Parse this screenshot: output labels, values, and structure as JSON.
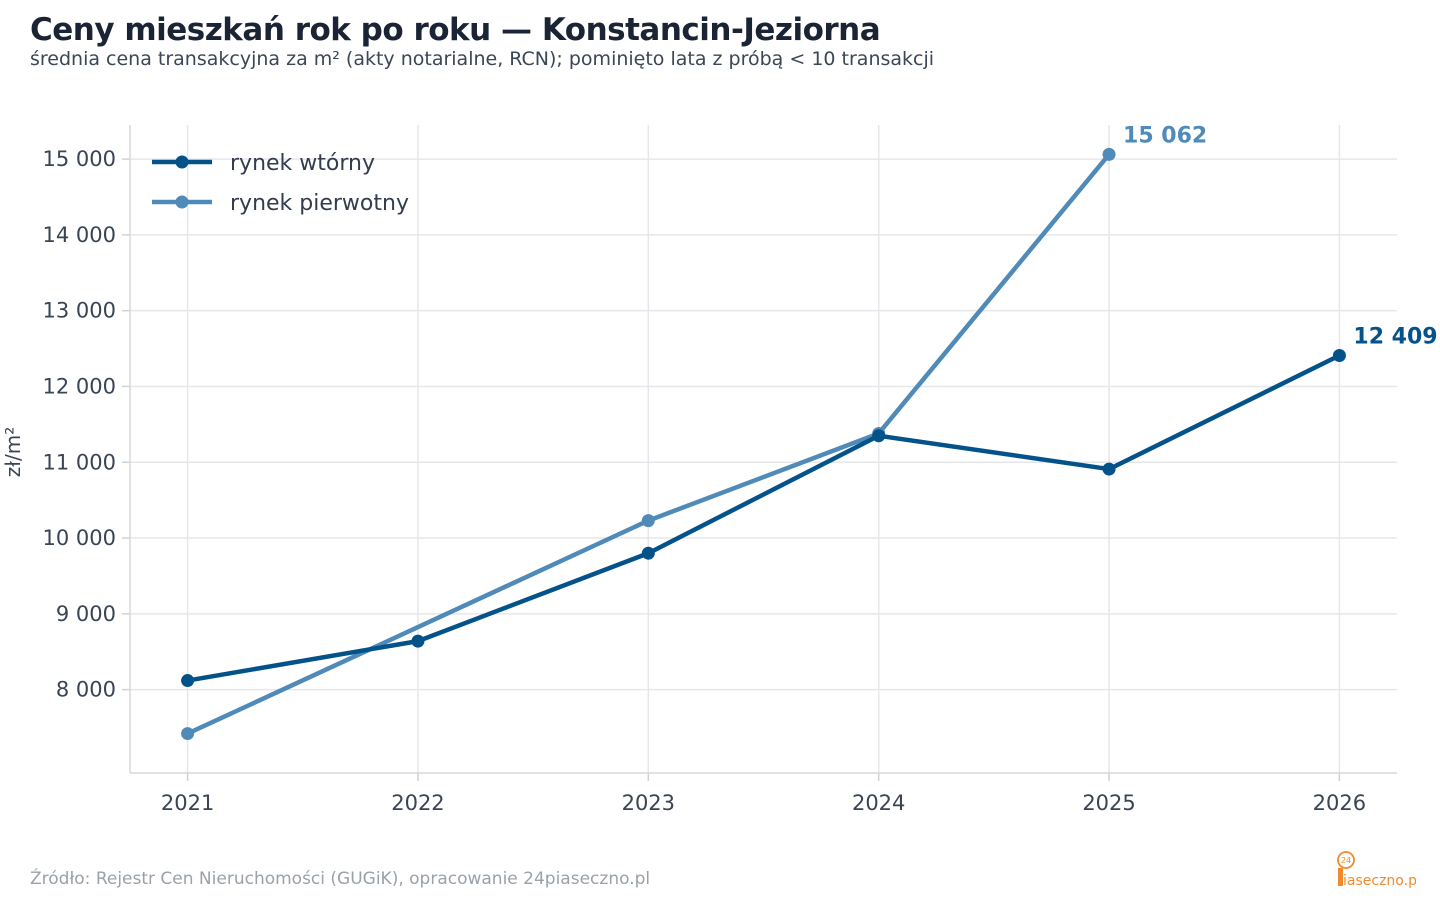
{
  "chart_data": {
    "type": "line",
    "title": "Ceny mieszkań rok po roku — Konstancin-Jeziorna",
    "subtitle": "średnia cena transakcyjna za m² (akty notarialne, RCN); pominięto lata z próbą < 10 transakcji",
    "ylabel": "zł/m²",
    "xlabel": "",
    "x": [
      2021,
      2022,
      2023,
      2024,
      2025,
      2026
    ],
    "x_tick_labels": [
      "2021",
      "2022",
      "2023",
      "2024",
      "2025",
      "2026"
    ],
    "ylim": [
      6900,
      15450
    ],
    "xlim": [
      2020.75,
      2026.25
    ],
    "y_ticks": [
      8000,
      9000,
      10000,
      11000,
      12000,
      13000,
      14000,
      15000
    ],
    "y_tick_labels": [
      "8 000",
      "9 000",
      "10 000",
      "11 000",
      "12 000",
      "13 000",
      "14 000",
      "15 000"
    ],
    "grid": true,
    "legend_position": "top-left",
    "series": [
      {
        "name": "rynek wtórny",
        "color": "#04528a",
        "points": [
          [
            2021,
            8120
          ],
          [
            2022,
            8640
          ],
          [
            2023,
            9800
          ],
          [
            2024,
            11350
          ],
          [
            2025,
            10910
          ],
          [
            2026,
            12409
          ]
        ],
        "end_label": "12 409"
      },
      {
        "name": "rynek pierwotny",
        "color": "#4f8ab9",
        "points": [
          [
            2021,
            7420
          ],
          [
            2023,
            10230
          ],
          [
            2024,
            11380
          ],
          [
            2025,
            15062
          ]
        ],
        "end_label": "15 062"
      }
    ]
  },
  "footer": {
    "source": "Źródło: Rejestr Cen Nieruchomości (GUGiK), opracowanie 24piaseczno.pl",
    "logo_text": "piaseczno.pl",
    "logo_badge": "24"
  },
  "colors": {
    "accent_orange": "#f08a2c",
    "grid": "#e6e7ea"
  }
}
